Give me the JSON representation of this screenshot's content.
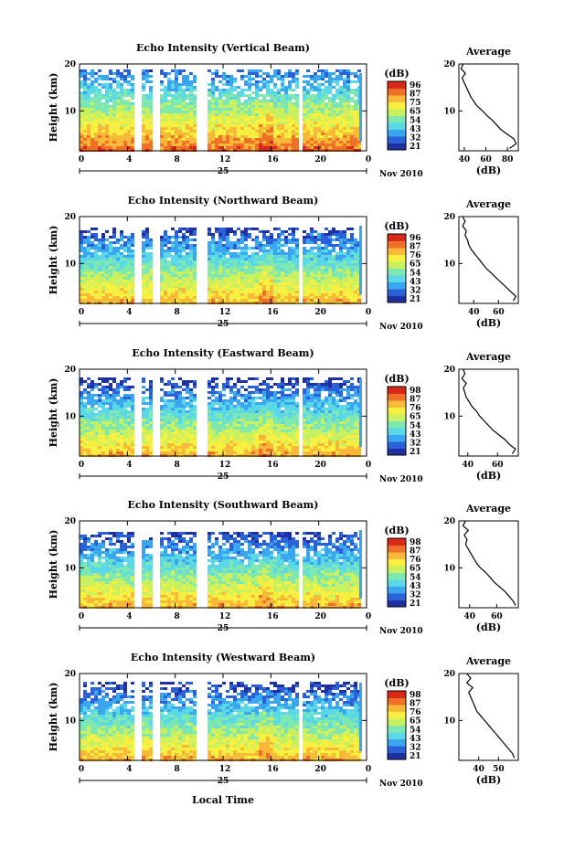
{
  "figure": {
    "xlabel": "Local Time",
    "date_label": "Nov 2010",
    "day_label": "25",
    "colorbar_unit": "(dB)",
    "average_title": "Average",
    "average_xlabel": "(dB)",
    "colormap": [
      "#2030a0",
      "#2a60d8",
      "#3aa6f0",
      "#5ad8e8",
      "#7ee8b0",
      "#c8f060",
      "#f8f040",
      "#f8b838",
      "#f07028",
      "#d82818"
    ],
    "gap_color": "#ffffff"
  },
  "chart_data": [
    {
      "type": "heatmap",
      "title": "Echo Intensity (Vertical Beam)",
      "xlabel": "Local Time",
      "ylabel": "Height (km)",
      "x_ticks": [
        "0",
        "4",
        "8",
        "12",
        "16",
        "20",
        "0"
      ],
      "y_ticks": [
        "10",
        "20"
      ],
      "xlim": [
        0,
        24
      ],
      "ylim": [
        1.5,
        20
      ],
      "colorbar_ticks": [
        "96",
        "87",
        "75",
        "65",
        "54",
        "43",
        "32",
        "21"
      ],
      "data_gaps_hours": [
        [
          4.4,
          4.9
        ],
        [
          6.1,
          6.6
        ],
        [
          9.7,
          10.5
        ],
        [
          18.2,
          18.4
        ]
      ],
      "average_profile": {
        "xlim": [
          35,
          90
        ],
        "x_ticks": [
          "40",
          "60",
          "80"
        ],
        "y_ticks": [
          "10",
          "20"
        ],
        "height_km": [
          2,
          3,
          4,
          5,
          6,
          7,
          8,
          9,
          10,
          11,
          12,
          13,
          14,
          15,
          16,
          17,
          18,
          19,
          20
        ],
        "intensity_db": [
          82,
          88,
          86,
          80,
          74,
          70,
          66,
          61,
          57,
          52,
          49,
          46,
          44,
          42,
          40,
          38,
          41,
          37,
          39
        ]
      }
    },
    {
      "type": "heatmap",
      "title": "Echo Intensity (Northward Beam)",
      "xlabel": "Local Time",
      "ylabel": "Height (km)",
      "x_ticks": [
        "0",
        "4",
        "8",
        "12",
        "16",
        "20",
        "0"
      ],
      "y_ticks": [
        "10",
        "20"
      ],
      "xlim": [
        0,
        24
      ],
      "ylim": [
        1.5,
        20
      ],
      "colorbar_ticks": [
        "96",
        "87",
        "76",
        "65",
        "54",
        "43",
        "32",
        "21"
      ],
      "data_gaps_hours": [
        [
          4.4,
          4.9
        ],
        [
          6.1,
          6.6
        ],
        [
          9.7,
          10.5
        ],
        [
          18.2,
          18.4
        ]
      ],
      "average_profile": {
        "xlim": [
          28,
          76
        ],
        "x_ticks": [
          "40",
          "60"
        ],
        "y_ticks": [
          "10",
          "20"
        ],
        "height_km": [
          2,
          3,
          4,
          5,
          6,
          7,
          8,
          9,
          10,
          11,
          12,
          13,
          14,
          15,
          16,
          17,
          18,
          19,
          20
        ],
        "intensity_db": [
          72,
          74,
          70,
          66,
          62,
          58,
          54,
          50,
          47,
          44,
          41,
          38,
          36,
          35,
          33,
          34,
          31,
          33,
          31
        ]
      }
    },
    {
      "type": "heatmap",
      "title": "Echo Intensity (Eastward Beam)",
      "xlabel": "Local Time",
      "ylabel": "Height (km)",
      "x_ticks": [
        "0",
        "4",
        "8",
        "12",
        "16",
        "20",
        "0"
      ],
      "y_ticks": [
        "10",
        "20"
      ],
      "xlim": [
        0,
        24
      ],
      "ylim": [
        1.5,
        20
      ],
      "colorbar_ticks": [
        "98",
        "87",
        "76",
        "65",
        "54",
        "43",
        "32",
        "21"
      ],
      "data_gaps_hours": [
        [
          4.4,
          4.9
        ],
        [
          6.1,
          6.6
        ],
        [
          9.7,
          10.5
        ],
        [
          18.2,
          18.4
        ]
      ],
      "average_profile": {
        "xlim": [
          34,
          74
        ],
        "x_ticks": [
          "40",
          "60"
        ],
        "y_ticks": [
          "10",
          "20"
        ],
        "height_km": [
          2,
          3,
          4,
          5,
          6,
          7,
          8,
          9,
          10,
          11,
          12,
          13,
          14,
          15,
          16,
          17,
          18,
          19,
          20
        ],
        "intensity_db": [
          70,
          72,
          68,
          65,
          61,
          57,
          54,
          51,
          48,
          46,
          43,
          41,
          39,
          38,
          37,
          39,
          36,
          38,
          37
        ]
      }
    },
    {
      "type": "heatmap",
      "title": "Echo Intensity (Southward Beam)",
      "xlabel": "Local Time",
      "ylabel": "Height (km)",
      "x_ticks": [
        "0",
        "4",
        "8",
        "12",
        "16",
        "20",
        "0"
      ],
      "y_ticks": [
        "10",
        "20"
      ],
      "xlim": [
        0,
        24
      ],
      "ylim": [
        1.5,
        20
      ],
      "colorbar_ticks": [
        "98",
        "87",
        "76",
        "65",
        "54",
        "43",
        "32",
        "21"
      ],
      "data_gaps_hours": [
        [
          4.4,
          4.9
        ],
        [
          6.1,
          6.6
        ],
        [
          9.7,
          10.5
        ],
        [
          18.2,
          18.4
        ]
      ],
      "average_profile": {
        "xlim": [
          32,
          76
        ],
        "x_ticks": [
          "40",
          "60"
        ],
        "y_ticks": [
          "10",
          "20"
        ],
        "height_km": [
          2,
          3,
          4,
          5,
          6,
          7,
          8,
          9,
          10,
          11,
          12,
          13,
          14,
          15,
          16,
          17,
          18,
          19,
          20
        ],
        "intensity_db": [
          74,
          72,
          69,
          66,
          62,
          58,
          55,
          52,
          48,
          45,
          43,
          41,
          39,
          37,
          38,
          36,
          39,
          35,
          37
        ]
      }
    },
    {
      "type": "heatmap",
      "title": "Echo Intensity (Westward Beam)",
      "xlabel": "Local Time",
      "ylabel": "Height (km)",
      "x_ticks": [
        "0",
        "4",
        "8",
        "12",
        "16",
        "20",
        "0"
      ],
      "y_ticks": [
        "10",
        "20"
      ],
      "xlim": [
        0,
        24
      ],
      "ylim": [
        1.5,
        20
      ],
      "colorbar_ticks": [
        "98",
        "87",
        "76",
        "65",
        "54",
        "43",
        "32",
        "21"
      ],
      "data_gaps_hours": [
        [
          4.4,
          4.9
        ],
        [
          6.1,
          6.6
        ],
        [
          9.7,
          10.5
        ],
        [
          18.2,
          18.4
        ]
      ],
      "average_profile": {
        "xlim": [
          30,
          60
        ],
        "x_ticks": [
          "40",
          "50"
        ],
        "y_ticks": [
          "10",
          "20"
        ],
        "height_km": [
          2,
          3,
          4,
          5,
          6,
          7,
          8,
          9,
          10,
          11,
          12,
          13,
          14,
          15,
          16,
          17,
          18,
          19,
          20
        ],
        "intensity_db": [
          58,
          57,
          55,
          53,
          51,
          49,
          47,
          45,
          43,
          41,
          39,
          38,
          37,
          36,
          35,
          37,
          34,
          36,
          34
        ]
      }
    }
  ]
}
